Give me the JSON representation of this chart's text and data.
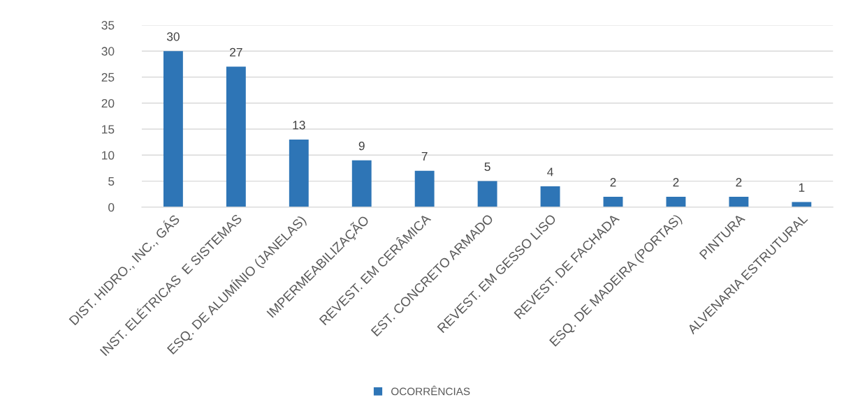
{
  "chart_data": {
    "type": "bar",
    "categories": [
      "DIST. HIDRO., INC., GÁS",
      "INST. ELÉTRICAS  E SISTEMAS",
      "ESQ. DE ALUMÍNIO (JANELAS)",
      "IMPERMEABILIZAÇÃO",
      "REVEST. EM CERÂMICA",
      "EST. CONCRETO ARMADO",
      "REVEST. EM GESSO LISO",
      "REVEST. DE FACHADA",
      "ESQ. DE MADEIRA (PORTAS)",
      "PINTURA",
      "ALVENARIA ESTRUTURAL"
    ],
    "series": [
      {
        "name": "OCORRÊNCIAS",
        "color": "#2e75b6",
        "values": [
          30,
          27,
          13,
          9,
          7,
          5,
          4,
          2,
          2,
          2,
          1
        ]
      }
    ],
    "ylim": [
      0,
      35
    ],
    "yticks": [
      0,
      5,
      10,
      15,
      20,
      25,
      30,
      35
    ],
    "grid": "y",
    "legend": "bottom",
    "data_labels": true
  }
}
